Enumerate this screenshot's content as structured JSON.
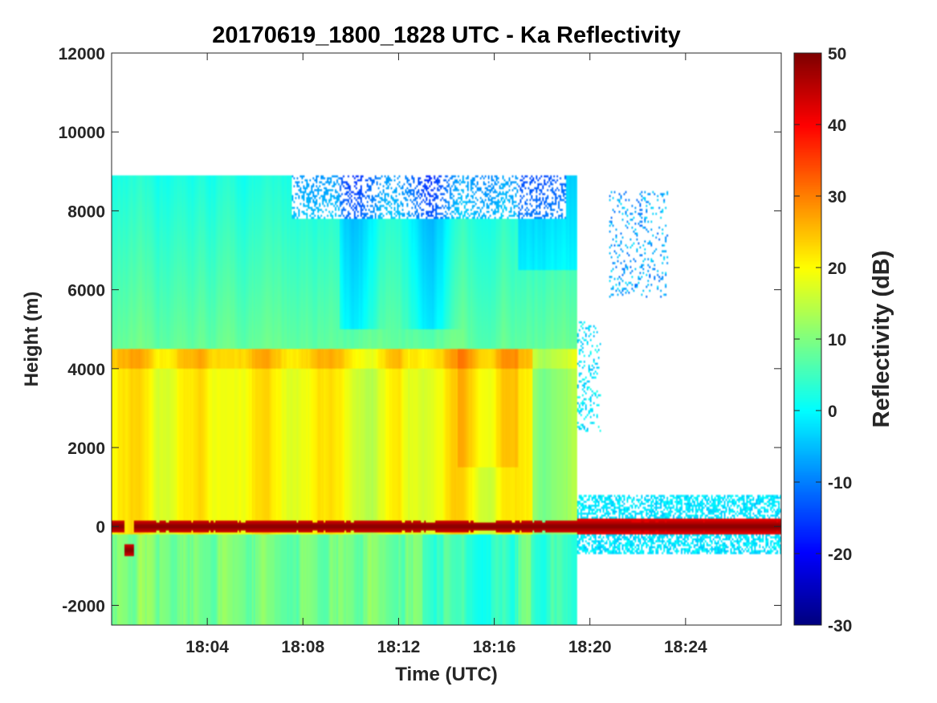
{
  "chart_data": {
    "type": "heatmap",
    "title": "20170619_1800_1828 UTC - Ka Reflectivity",
    "xlabel": "Time (UTC)",
    "ylabel": "Height (m)",
    "colorbar_label": "Reflectivity (dB)",
    "x_range_min": [
      0,
      28
    ],
    "xlim_time": [
      "18:00",
      "18:28"
    ],
    "xticks": [
      {
        "min": 4,
        "label": "18:04"
      },
      {
        "min": 8,
        "label": "18:08"
      },
      {
        "min": 12,
        "label": "18:12"
      },
      {
        "min": 16,
        "label": "18:16"
      },
      {
        "min": 20,
        "label": "18:20"
      },
      {
        "min": 24,
        "label": "18:24"
      }
    ],
    "ylim": [
      -2500,
      12000
    ],
    "yticks": [
      {
        "value": -2000,
        "label": "-2000"
      },
      {
        "value": 0,
        "label": "0"
      },
      {
        "value": 2000,
        "label": "2000"
      },
      {
        "value": 4000,
        "label": "4000"
      },
      {
        "value": 6000,
        "label": "6000"
      },
      {
        "value": 8000,
        "label": "8000"
      },
      {
        "value": 10000,
        "label": "10000"
      },
      {
        "value": 12000,
        "label": "12000"
      }
    ],
    "clim": [
      -30,
      50
    ],
    "cbticks": [
      {
        "value": -30,
        "label": "-30"
      },
      {
        "value": -20,
        "label": "-20"
      },
      {
        "value": -10,
        "label": "-10"
      },
      {
        "value": 0,
        "label": "0"
      },
      {
        "value": 10,
        "label": "10"
      },
      {
        "value": 20,
        "label": "20"
      },
      {
        "value": 30,
        "label": "30"
      },
      {
        "value": 40,
        "label": "40"
      },
      {
        "value": 50,
        "label": "50"
      }
    ],
    "colormap": "jet",
    "field_summary": {
      "echo_top_m": 8900,
      "melting_layer_height_m": 4500,
      "surface_echo_height_m": 0,
      "precip_end_min": 19.4,
      "typical_dB_below_melting_layer": 20,
      "typical_dB_above_melting_layer": 8,
      "surface_echo_dB": 50
    }
  }
}
